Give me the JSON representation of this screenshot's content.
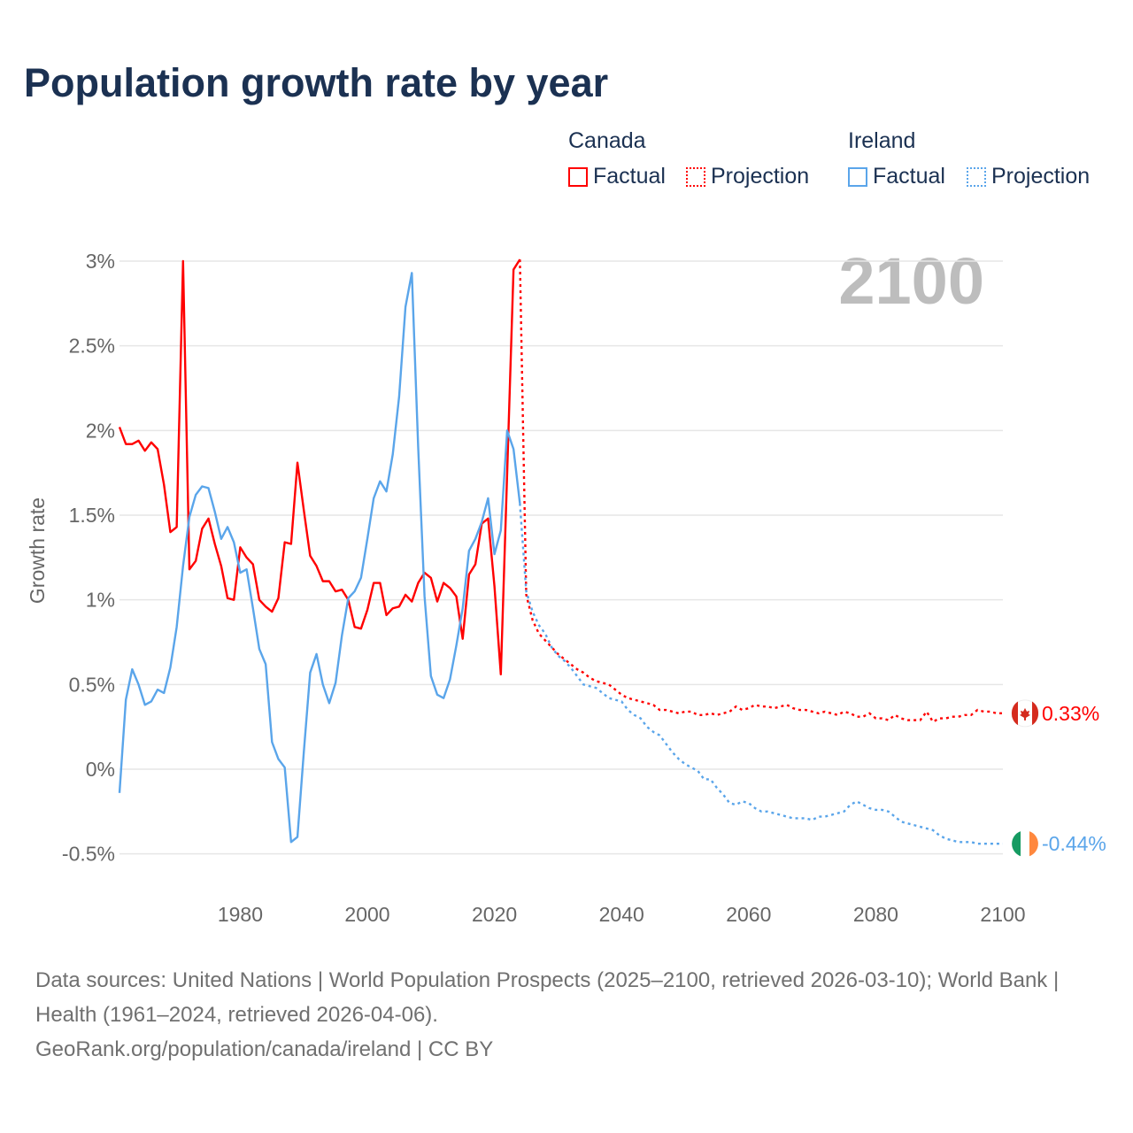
{
  "chart_data": {
    "type": "line",
    "title": "Population growth rate by year",
    "ylabel": "Growth rate",
    "xlabel": "",
    "xlim": [
      1961,
      2100
    ],
    "ylim": [
      -0.6,
      3.0
    ],
    "yticks": [
      -0.5,
      0,
      0.5,
      1,
      1.5,
      2,
      2.5,
      3
    ],
    "ytick_labels": [
      "-0.5%",
      "0%",
      "0.5%",
      "1%",
      "1.5%",
      "2%",
      "2.5%",
      "3%"
    ],
    "xticks": [
      1980,
      2000,
      2020,
      2040,
      2060,
      2080,
      2100
    ],
    "xtick_labels": [
      "1980",
      "2000",
      "2020",
      "2040",
      "2060",
      "2080",
      "2100"
    ],
    "year_watermark": "2100",
    "grid": true,
    "legend_position": "top-right",
    "legend": {
      "groups": [
        {
          "name": "Canada",
          "items": [
            "Factual",
            "Projection"
          ]
        },
        {
          "name": "Ireland",
          "items": [
            "Factual",
            "Projection"
          ]
        }
      ]
    },
    "series": [
      {
        "name": "Canada",
        "color": "#ff0000",
        "factual_start": 1961,
        "factual": [
          2.02,
          1.92,
          1.92,
          1.94,
          1.88,
          1.93,
          1.89,
          1.68,
          1.4,
          1.43,
          3.0,
          1.18,
          1.23,
          1.42,
          1.48,
          1.33,
          1.2,
          1.01,
          1.0,
          1.31,
          1.25,
          1.21,
          1.0,
          0.96,
          0.93,
          1.01,
          1.34,
          1.33,
          1.81,
          1.53,
          1.26,
          1.2,
          1.11,
          1.11,
          1.05,
          1.06,
          1.0,
          0.84,
          0.83,
          0.94,
          1.1,
          1.1,
          0.91,
          0.95,
          0.96,
          1.03,
          0.99,
          1.1,
          1.16,
          1.13,
          0.99,
          1.1,
          1.07,
          1.02,
          0.77,
          1.15,
          1.21,
          1.45,
          1.48,
          1.08,
          0.56,
          1.75,
          2.95,
          3.01
        ],
        "projection_start": 2025,
        "projection": [
          1.03,
          0.88,
          0.8,
          0.76,
          0.72,
          0.68,
          0.65,
          0.62,
          0.59,
          0.57,
          0.54,
          0.52,
          0.51,
          0.5,
          0.47,
          0.44,
          0.42,
          0.41,
          0.4,
          0.39,
          0.38,
          0.35,
          0.35,
          0.34,
          0.33,
          0.34,
          0.34,
          0.32,
          0.32,
          0.33,
          0.32,
          0.33,
          0.34,
          0.37,
          0.35,
          0.36,
          0.38,
          0.37,
          0.37,
          0.36,
          0.37,
          0.38,
          0.36,
          0.35,
          0.35,
          0.34,
          0.33,
          0.34,
          0.33,
          0.32,
          0.34,
          0.33,
          0.31,
          0.31,
          0.33,
          0.3,
          0.3,
          0.29,
          0.32,
          0.3,
          0.29,
          0.29,
          0.29,
          0.34,
          0.28,
          0.3,
          0.3,
          0.31,
          0.31,
          0.32,
          0.32,
          0.35,
          0.34,
          0.34,
          0.33,
          0.33
        ],
        "end_label": "0.33%"
      },
      {
        "name": "Ireland",
        "color": "#5aa5ea",
        "factual_start": 1961,
        "factual": [
          -0.14,
          0.41,
          0.59,
          0.5,
          0.38,
          0.4,
          0.47,
          0.45,
          0.6,
          0.84,
          1.2,
          1.49,
          1.62,
          1.67,
          1.66,
          1.52,
          1.36,
          1.43,
          1.34,
          1.16,
          1.18,
          0.95,
          0.71,
          0.62,
          0.16,
          0.06,
          0.01,
          -0.43,
          -0.4,
          0.1,
          0.57,
          0.68,
          0.5,
          0.39,
          0.51,
          0.79,
          1.01,
          1.05,
          1.13,
          1.36,
          1.6,
          1.7,
          1.64,
          1.86,
          2.2,
          2.73,
          2.93,
          1.9,
          1.02,
          0.55,
          0.44,
          0.42,
          0.53,
          0.73,
          0.95,
          1.29,
          1.36,
          1.46,
          1.6,
          1.27,
          1.41,
          2.0,
          1.89,
          1.57
        ],
        "projection_start": 2025,
        "projection": [
          1.05,
          0.93,
          0.85,
          0.8,
          0.72,
          0.67,
          0.64,
          0.6,
          0.55,
          0.5,
          0.49,
          0.48,
          0.45,
          0.42,
          0.41,
          0.4,
          0.35,
          0.32,
          0.3,
          0.25,
          0.22,
          0.2,
          0.15,
          0.1,
          0.06,
          0.03,
          0.01,
          -0.01,
          -0.06,
          -0.06,
          -0.11,
          -0.15,
          -0.2,
          -0.21,
          -0.19,
          -0.2,
          -0.23,
          -0.25,
          -0.25,
          -0.26,
          -0.27,
          -0.28,
          -0.29,
          -0.29,
          -0.29,
          -0.3,
          -0.28,
          -0.28,
          -0.27,
          -0.26,
          -0.25,
          -0.21,
          -0.19,
          -0.21,
          -0.23,
          -0.24,
          -0.24,
          -0.25,
          -0.28,
          -0.31,
          -0.32,
          -0.33,
          -0.34,
          -0.35,
          -0.36,
          -0.39,
          -0.41,
          -0.42,
          -0.43,
          -0.43,
          -0.43,
          -0.44,
          -0.44,
          -0.44,
          -0.44,
          -0.44
        ],
        "end_label": "-0.44%"
      }
    ]
  },
  "footer": {
    "sources": "Data sources: United Nations | World Population Prospects (2025–2100, retrieved 2026-03-10); World Bank | Health (1961–2024, retrieved 2026-04-06).",
    "credit": "GeoRank.org/population/canada/ireland | CC BY"
  }
}
